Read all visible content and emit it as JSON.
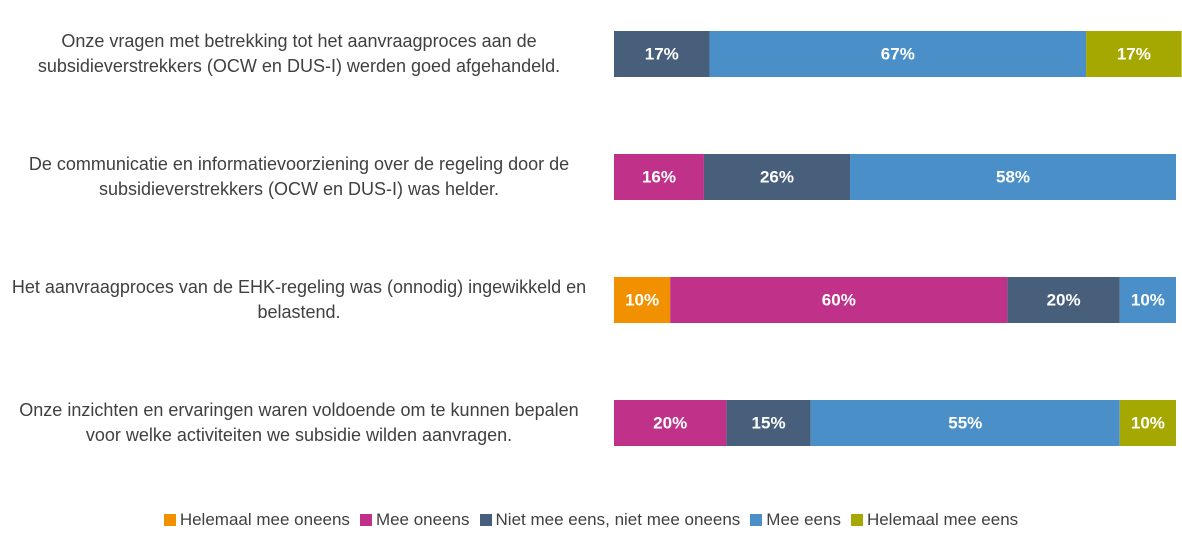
{
  "chart_data": {
    "type": "bar",
    "orientation": "horizontal",
    "stacked": true,
    "categories": [
      "Onze vragen met betrekking tot het aanvraagproces aan de subsidieverstrekkers (OCW en DUS-I) werden goed afgehandeld.",
      "De communicatie en informatievoorziening over de regeling door de subsidieverstrekkers (OCW en DUS-I) was helder.",
      "Het aanvraagproces van de EHK-regeling was (onnodig) ingewikkeld en belastend.",
      "Onze inzichten en ervaringen waren voldoende om te kunnen bepalen voor welke activiteiten we subsidie wilden aanvragen."
    ],
    "series": [
      {
        "name": "Helemaal mee oneens",
        "color": "#f29100",
        "values": [
          0,
          0,
          10,
          0
        ],
        "value_labels": [
          null,
          null,
          "10%",
          null
        ]
      },
      {
        "name": "Mee oneens",
        "color": "#c0328a",
        "values": [
          0,
          16,
          60,
          20
        ],
        "value_labels": [
          null,
          "16%",
          "60%",
          "20%"
        ]
      },
      {
        "name": "Niet mee eens, niet mee oneens",
        "color": "#475f7b",
        "values": [
          17,
          26,
          20,
          15
        ],
        "value_labels": [
          "17%",
          "26%",
          "20%",
          "15%"
        ]
      },
      {
        "name": "Mee eens",
        "color": "#4a8fc7",
        "values": [
          67,
          58,
          10,
          55
        ],
        "value_labels": [
          "67%",
          "58%",
          "10%",
          "55%"
        ]
      },
      {
        "name": "Helemaal mee eens",
        "color": "#a5a800",
        "values": [
          17,
          0,
          0,
          10
        ],
        "value_labels": [
          "17%",
          null,
          null,
          "10%"
        ]
      }
    ],
    "legend": "bottom"
  }
}
